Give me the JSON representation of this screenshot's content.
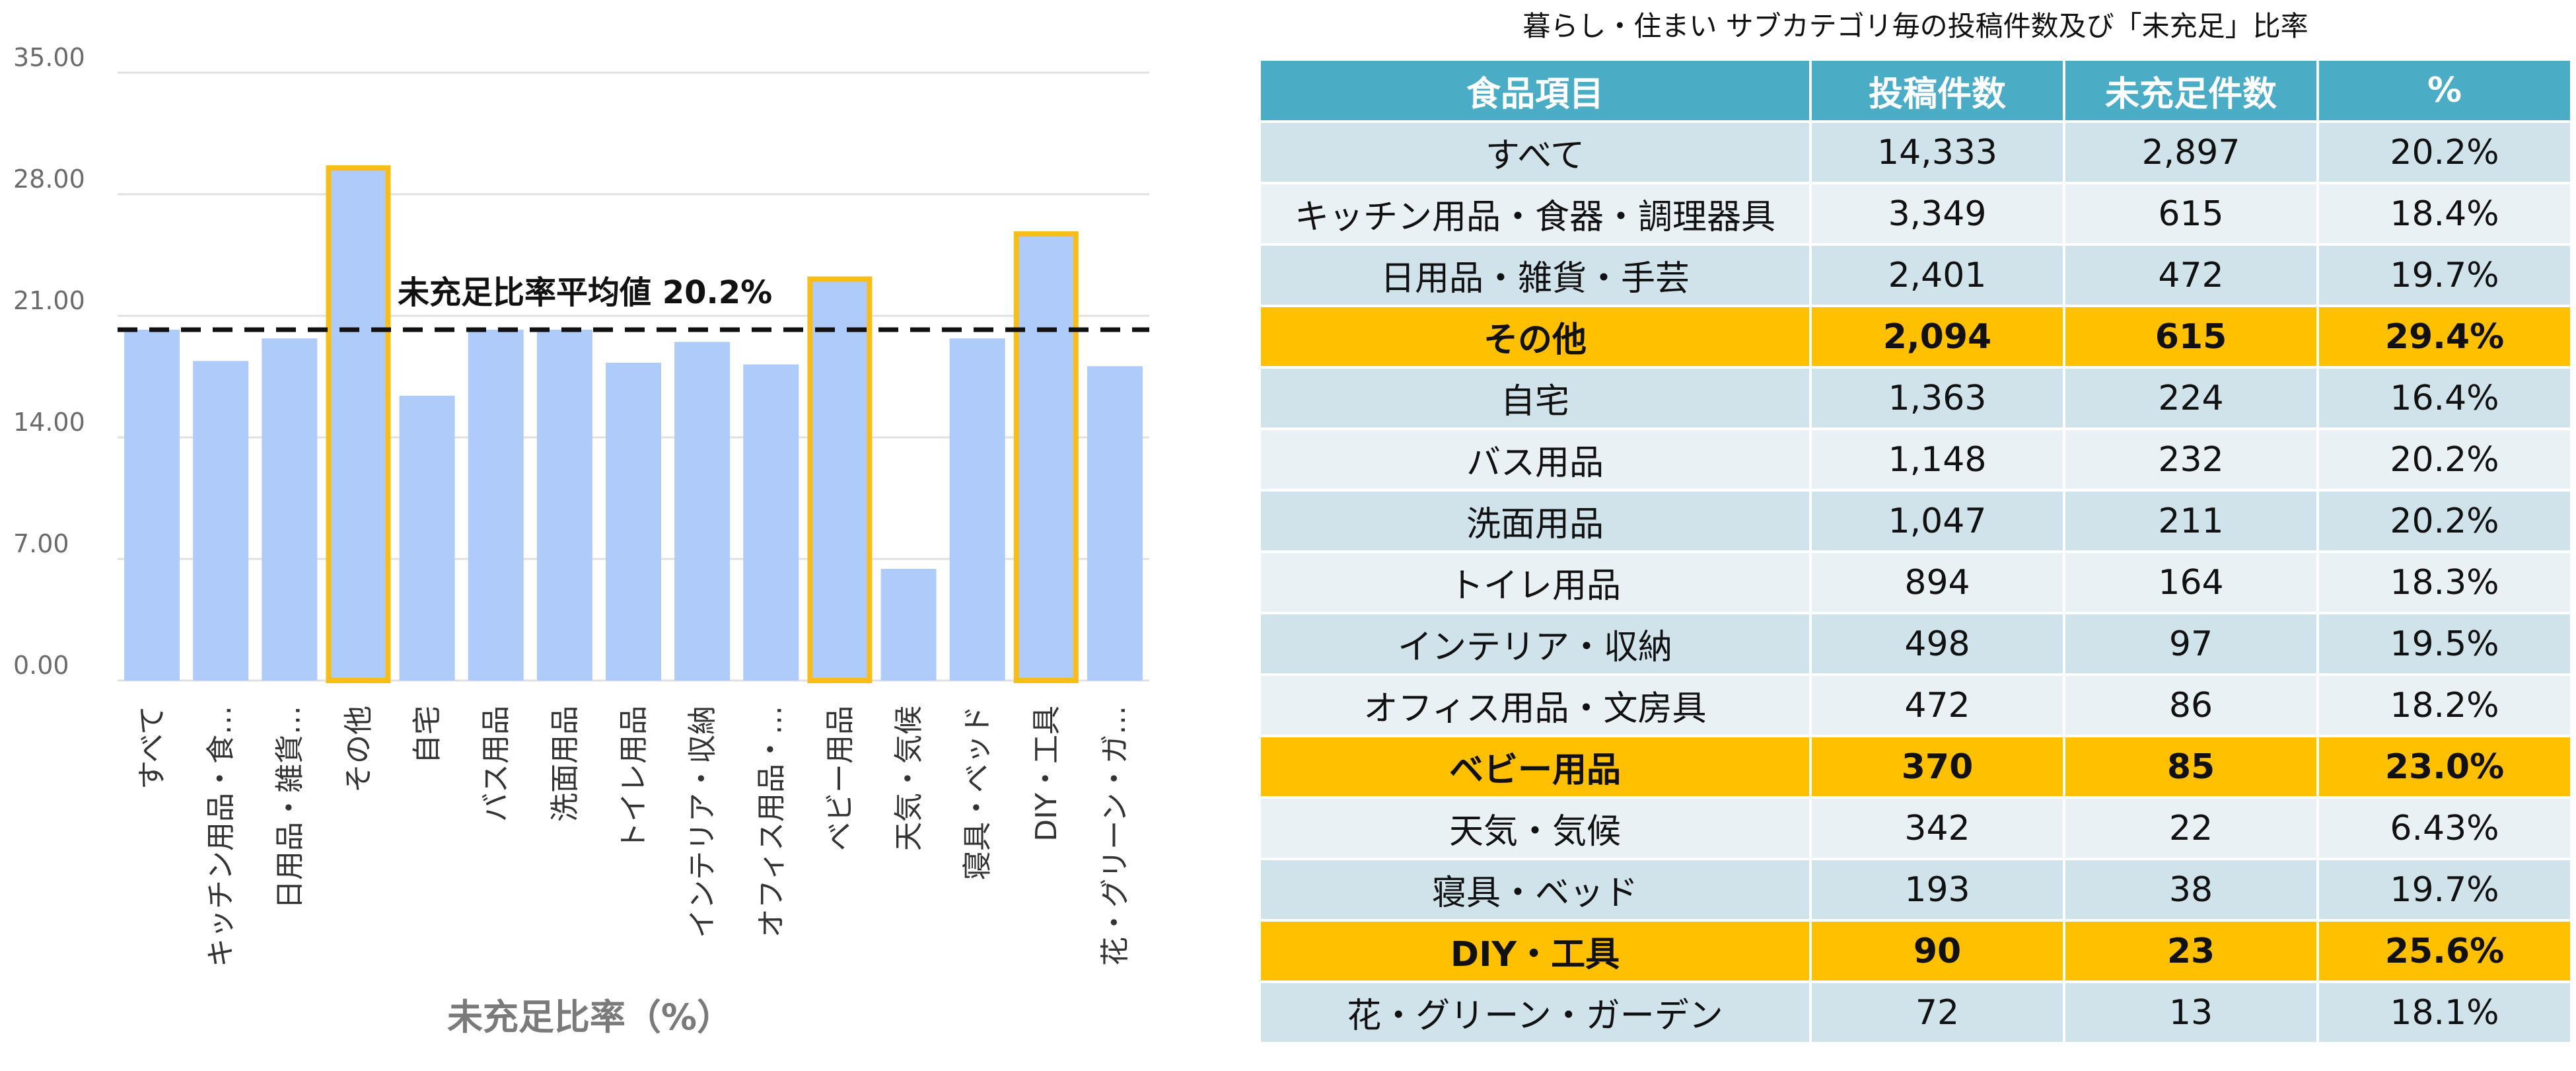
{
  "chart_data": {
    "type": "bar",
    "categories": [
      "すべて",
      "キッチン用品・食…",
      "日用品・雑貨…",
      "その他",
      "自宅",
      "バス用品",
      "洗面用品",
      "トイレ用品",
      "インテリア・収納",
      "オフィス用品・…",
      "ベビー用品",
      "天気・気候",
      "寝具・ベッド",
      "DIY・工具",
      "花・グリーン・ガ…"
    ],
    "values": [
      20.2,
      18.4,
      19.7,
      29.4,
      16.4,
      20.2,
      20.2,
      18.3,
      19.5,
      18.2,
      23.0,
      6.43,
      19.7,
      25.6,
      18.1
    ],
    "highlighted": [
      "その他",
      "ベビー用品",
      "DIY・工具"
    ],
    "xlabel": "未充足比率（%）",
    "ylabel": "",
    "ylim": [
      0,
      35
    ],
    "yticks": [
      "0.00",
      "7.00",
      "14.00",
      "21.00",
      "28.00",
      "35.00"
    ],
    "reference_line": {
      "value": 20.2,
      "label": "未充足比率平均値 20.2%"
    },
    "grid": true,
    "colors": {
      "bar": "#aecbfa",
      "highlight_border": "#f9bd18",
      "reference_line": "#111111",
      "grid": "#e0e0e0"
    }
  },
  "table": {
    "title": "暮らし・住まい サブカテゴリ毎の投稿件数及び「未充足」比率",
    "headers": [
      "食品項目",
      "投稿件数",
      "未充足件数",
      "%"
    ],
    "rows": [
      {
        "cells": [
          "すべて",
          "14,333",
          "2,897",
          "20.2%"
        ],
        "highlight": false
      },
      {
        "cells": [
          "キッチン用品・食器・調理器具",
          "3,349",
          "615",
          "18.4%"
        ],
        "highlight": false
      },
      {
        "cells": [
          "日用品・雑貨・手芸",
          "2,401",
          "472",
          "19.7%"
        ],
        "highlight": false
      },
      {
        "cells": [
          "その他",
          "2,094",
          "615",
          "29.4%"
        ],
        "highlight": true
      },
      {
        "cells": [
          "自宅",
          "1,363",
          "224",
          "16.4%"
        ],
        "highlight": false
      },
      {
        "cells": [
          "バス用品",
          "1,148",
          "232",
          "20.2%"
        ],
        "highlight": false
      },
      {
        "cells": [
          "洗面用品",
          "1,047",
          "211",
          "20.2%"
        ],
        "highlight": false
      },
      {
        "cells": [
          "トイレ用品",
          "894",
          "164",
          "18.3%"
        ],
        "highlight": false
      },
      {
        "cells": [
          "インテリア・収納",
          "498",
          "97",
          "19.5%"
        ],
        "highlight": false
      },
      {
        "cells": [
          "オフィス用品・文房具",
          "472",
          "86",
          "18.2%"
        ],
        "highlight": false
      },
      {
        "cells": [
          "ベビー用品",
          "370",
          "85",
          "23.0%"
        ],
        "highlight": true
      },
      {
        "cells": [
          "天気・気候",
          "342",
          "22",
          "6.43%"
        ],
        "highlight": false
      },
      {
        "cells": [
          "寝具・ベッド",
          "193",
          "38",
          "19.7%"
        ],
        "highlight": false
      },
      {
        "cells": [
          "DIY・工具",
          "90",
          "23",
          "25.6%"
        ],
        "highlight": true
      },
      {
        "cells": [
          "花・グリーン・ガーデン",
          "72",
          "13",
          "18.1%"
        ],
        "highlight": false
      }
    ],
    "colors": {
      "header": "#4bacc6",
      "row_a": "#d0e3eb",
      "row_b": "#e9f1f5",
      "highlight": "#ffc000"
    }
  }
}
